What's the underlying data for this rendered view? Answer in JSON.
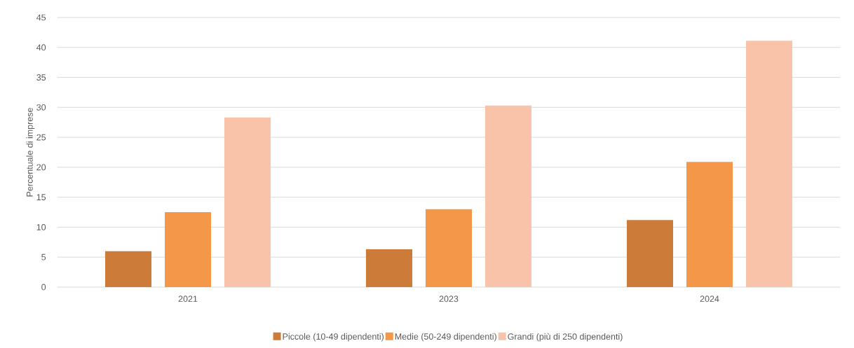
{
  "chart_data": {
    "type": "bar",
    "ylabel": "Percentuale di imprese",
    "categories": [
      "2021",
      "2023",
      "2024"
    ],
    "series": [
      {
        "name": "Piccole (10-49 dipendenti)",
        "color": "#cc7b38",
        "values": [
          6.0,
          6.3,
          11.2
        ]
      },
      {
        "name": "Medie (50-249 dipendenti)",
        "color": "#f59748",
        "values": [
          12.5,
          13.0,
          20.9
        ]
      },
      {
        "name": "Grandi (più di 250 dipendenti)",
        "color": "#f9c3a9",
        "values": [
          28.3,
          30.3,
          41.1
        ]
      }
    ],
    "ylim": [
      0,
      45
    ],
    "yticks": [
      0,
      5,
      10,
      15,
      20,
      25,
      30,
      35,
      40,
      45
    ],
    "grid": "y",
    "legend": "bottom"
  }
}
